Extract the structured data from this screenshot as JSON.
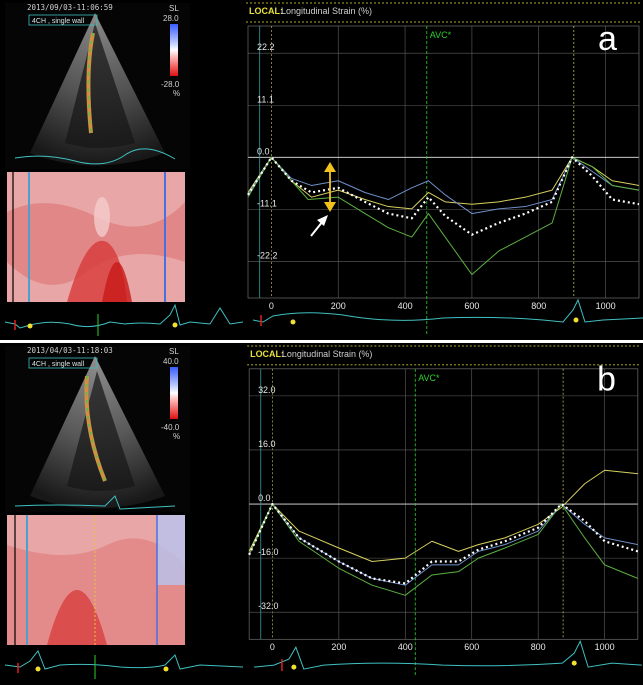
{
  "panels": [
    {
      "id": "a",
      "letter": "a",
      "date": "2013/09/03-11:06:59",
      "view": "4CH , single wall",
      "scale_label": "SL",
      "scale_top": "28.0",
      "scale_bottom": "-28.0",
      "scale_unit": "%",
      "header_local": "LOCAL:",
      "header_title": "Longitudinal Strain (%)",
      "avc_label": "AVC*",
      "y_ticks": [
        "22.2",
        "11.1",
        "0.0",
        "-11.1",
        "-22.2"
      ],
      "x_ticks": [
        "0",
        "200",
        "400",
        "600",
        "800",
        "1000"
      ],
      "colors": {
        "yellow": "#d8d060",
        "blue": "#6f8fc8",
        "green": "#5cb040",
        "mean": "#ffffff",
        "avc": "#2fd12f",
        "arrow": "#f2c21c"
      }
    },
    {
      "id": "b",
      "letter": "b",
      "date": "2013/04/03-11:18:03",
      "view": "4CH , single wall",
      "scale_label": "SL",
      "scale_top": "40.0",
      "scale_bottom": "-40.0",
      "scale_unit": "%",
      "header_local": "LOCAL:",
      "header_title": "Longitudinal Strain (%)",
      "avc_label": "AVC*",
      "y_ticks": [
        "32.0",
        "16.0",
        "0.0",
        "-16.0",
        "-32.0"
      ],
      "x_ticks": [
        "0",
        "200",
        "400",
        "600",
        "800",
        "1000"
      ],
      "colors": {
        "yellow": "#d8d060",
        "blue": "#6f8fc8",
        "green": "#5cb040",
        "mean": "#ffffff",
        "avc": "#2fd12f"
      }
    }
  ],
  "chart_data": [
    {
      "type": "line",
      "panel": "a",
      "title": "Longitudinal Strain (%)",
      "x_unit": "ms",
      "xlim": [
        -70,
        1100
      ],
      "ylim": [
        -30,
        28
      ],
      "avc_x": 465,
      "series": [
        {
          "color": "yellow",
          "x": [
            -70,
            0,
            60,
            120,
            200,
            280,
            350,
            420,
            470,
            520,
            600,
            680,
            760,
            840,
            900,
            960,
            1020,
            1100
          ],
          "y": [
            -7.5,
            0,
            -5,
            -8.5,
            -7,
            -9,
            -10.5,
            -11,
            -7.5,
            -9.5,
            -10,
            -9.5,
            -8.5,
            -7,
            0,
            -2,
            -5,
            -6
          ]
        },
        {
          "color": "blue",
          "x": [
            -70,
            0,
            60,
            120,
            200,
            280,
            350,
            420,
            470,
            520,
            600,
            680,
            760,
            840,
            900,
            960,
            1020,
            1100
          ],
          "y": [
            -8,
            0,
            -4.5,
            -6,
            -5,
            -7.5,
            -9,
            -6.5,
            -5,
            -8,
            -12,
            -11,
            -10.5,
            -9,
            0,
            -3,
            -6,
            -7
          ]
        },
        {
          "color": "green",
          "x": [
            -70,
            0,
            60,
            110,
            200,
            280,
            350,
            420,
            470,
            520,
            600,
            680,
            760,
            840,
            900,
            960,
            1020,
            1100
          ],
          "y": [
            -8.5,
            0,
            -5,
            -9,
            -8.5,
            -12,
            -15,
            -17,
            -12,
            -17,
            -25,
            -20,
            -17,
            -14,
            0,
            -2,
            -6,
            -7
          ]
        },
        {
          "color": "mean",
          "x": [
            -70,
            0,
            60,
            120,
            200,
            280,
            350,
            420,
            470,
            520,
            600,
            680,
            760,
            840,
            900,
            960,
            1020,
            1100
          ],
          "y": [
            -8,
            0,
            -5,
            -7.5,
            -6.5,
            -9.5,
            -12,
            -13,
            -8.5,
            -12.5,
            -16.5,
            -14,
            -12,
            -9.5,
            0,
            -4,
            -9,
            -10
          ]
        }
      ]
    },
    {
      "type": "line",
      "panel": "b",
      "title": "Longitudinal Strain (%)",
      "x_unit": "ms",
      "xlim": [
        -70,
        1100
      ],
      "ylim": [
        -40,
        40
      ],
      "avc_x": 430,
      "series": [
        {
          "color": "yellow",
          "x": [
            -70,
            0,
            80,
            200,
            300,
            400,
            480,
            560,
            620,
            700,
            800,
            870,
            940,
            1000,
            1100
          ],
          "y": [
            -14,
            0,
            -8,
            -13,
            -17,
            -16,
            -11,
            -14,
            -12,
            -10,
            -6,
            -1,
            6,
            10,
            9
          ]
        },
        {
          "color": "blue",
          "x": [
            -70,
            0,
            80,
            200,
            300,
            400,
            480,
            560,
            620,
            700,
            800,
            870,
            940,
            1000,
            1100
          ],
          "y": [
            -15,
            0,
            -10,
            -17,
            -22,
            -24,
            -18,
            -18,
            -14,
            -12,
            -8,
            0,
            -6,
            -10,
            -12
          ]
        },
        {
          "color": "green",
          "x": [
            -70,
            0,
            80,
            200,
            300,
            400,
            480,
            560,
            620,
            700,
            800,
            870,
            940,
            1000,
            1100
          ],
          "y": [
            -15,
            0,
            -11,
            -19,
            -24,
            -27,
            -21,
            -20,
            -16,
            -13,
            -9,
            0,
            -10,
            -18,
            -22
          ]
        },
        {
          "color": "mean",
          "x": [
            -70,
            0,
            80,
            200,
            300,
            400,
            480,
            560,
            620,
            700,
            800,
            870,
            940,
            1000,
            1100
          ],
          "y": [
            -15,
            0,
            -10,
            -17,
            -22,
            -23.5,
            -17,
            -17,
            -13.5,
            -11,
            -7,
            0,
            -5,
            -11,
            -14
          ]
        }
      ]
    }
  ]
}
